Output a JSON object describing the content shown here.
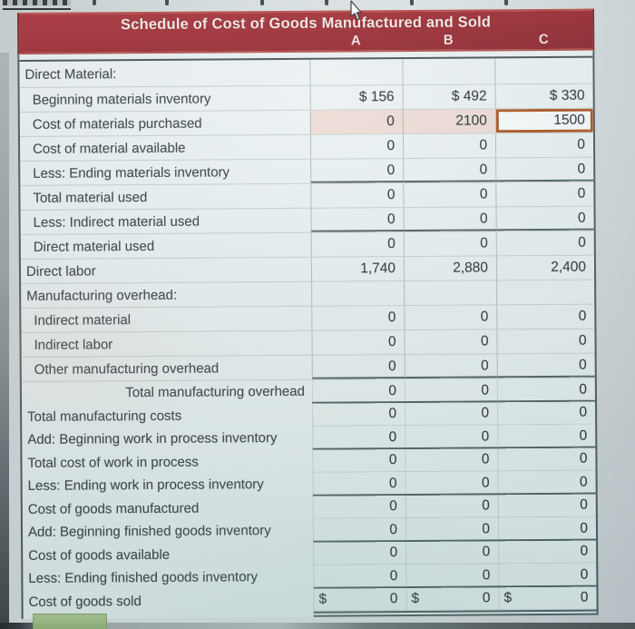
{
  "table": {
    "title": "Schedule of Cost of Goods Manufactured and Sold",
    "columns": [
      "A",
      "B",
      "C"
    ],
    "currency_symbol": "$",
    "rows": [
      {
        "label": "Direct Material:",
        "indent": 0,
        "section": "upper",
        "values": null
      },
      {
        "label": "Beginning materials inventory",
        "indent": 1,
        "section": "upper",
        "values": [
          "$ 156",
          "$ 492",
          "$ 330"
        ]
      },
      {
        "label": "Cost of materials purchased",
        "indent": 1,
        "section": "upper",
        "values": [
          "0",
          "2100",
          "1500"
        ],
        "highlight_ab": true,
        "selected_col": 2
      },
      {
        "label": "Cost of material available",
        "indent": 1,
        "section": "upper",
        "values": [
          "0",
          "0",
          "0"
        ]
      },
      {
        "label": "Less: Ending materials inventory",
        "indent": 1,
        "section": "upper",
        "values": [
          "0",
          "0",
          "0"
        ],
        "rule_below": true
      },
      {
        "label": "Total material used",
        "indent": 1,
        "section": "upper",
        "values": [
          "0",
          "0",
          "0"
        ]
      },
      {
        "label": "Less: Indirect material used",
        "indent": 1,
        "section": "upper",
        "values": [
          "0",
          "0",
          "0"
        ],
        "rule_below": true
      },
      {
        "label": "Direct material used",
        "indent": 1,
        "section": "upper",
        "values": [
          "0",
          "0",
          "0"
        ]
      },
      {
        "label": "Direct labor",
        "indent": 0,
        "section": "upper",
        "values": [
          "1,740",
          "2,880",
          "2,400"
        ]
      },
      {
        "label": "Manufacturing overhead:",
        "indent": 0,
        "section": "upper",
        "values": null
      },
      {
        "label": "Indirect material",
        "indent": 1,
        "section": "upper",
        "values": [
          "0",
          "0",
          "0"
        ]
      },
      {
        "label": "Indirect labor",
        "indent": 1,
        "section": "upper",
        "values": [
          "0",
          "0",
          "0"
        ]
      },
      {
        "label": "Other manufacturing overhead",
        "indent": 1,
        "section": "upper",
        "values": [
          "0",
          "0",
          "0"
        ],
        "rule_below": true
      },
      {
        "label": "Total manufacturing overhead",
        "align": "right",
        "section": "lower",
        "values": [
          "0",
          "0",
          "0"
        ],
        "rule_below": true
      },
      {
        "label": "Total manufacturing costs",
        "indent": 0,
        "section": "lower",
        "values": [
          "0",
          "0",
          "0"
        ]
      },
      {
        "label": "Add: Beginning work in process inventory",
        "indent": 0,
        "section": "lower",
        "values": [
          "0",
          "0",
          "0"
        ],
        "rule_below": true
      },
      {
        "label": "Total cost of work in process",
        "indent": 0,
        "section": "lower",
        "values": [
          "0",
          "0",
          "0"
        ]
      },
      {
        "label": "Less: Ending work in process inventory",
        "indent": 0,
        "section": "lower",
        "values": [
          "0",
          "0",
          "0"
        ],
        "rule_below": true
      },
      {
        "label": "Cost of goods manufactured",
        "indent": 0,
        "section": "lower",
        "values": [
          "0",
          "0",
          "0"
        ]
      },
      {
        "label": "Add: Beginning finished goods inventory",
        "indent": 0,
        "section": "lower",
        "values": [
          "0",
          "0",
          "0"
        ],
        "rule_below": true
      },
      {
        "label": "Cost of goods available",
        "indent": 0,
        "section": "lower",
        "values": [
          "0",
          "0",
          "0"
        ]
      },
      {
        "label": "Less: Ending finished goods inventory",
        "indent": 0,
        "section": "lower",
        "values": [
          "0",
          "0",
          "0"
        ],
        "rule_below": true
      },
      {
        "label": "Cost of goods sold",
        "indent": 0,
        "section": "lower",
        "values": [
          "0",
          "0",
          "0"
        ],
        "dollar_left": true,
        "double_rule_below": true
      }
    ],
    "selected_cell": {
      "row_label": "Cost of materials purchased",
      "column": "C",
      "value": "1500"
    }
  },
  "bottom_button": {
    "label": ""
  },
  "cursor": {
    "visible": true
  },
  "top_edge_cutoff_line": true,
  "colors": {
    "banner_red": "#9c2830",
    "banner_red_light": "#ab3138",
    "banner_text": "#f4e9e5",
    "selection_border": "#ac4f1c",
    "highlight_pink": "#ecdad4",
    "rule_dark": "#4b5c5e",
    "button_green": "#9dbf82",
    "cell_bg": "#e7eff0",
    "grid_light": "#c3cecd",
    "text": "#39424f"
  }
}
